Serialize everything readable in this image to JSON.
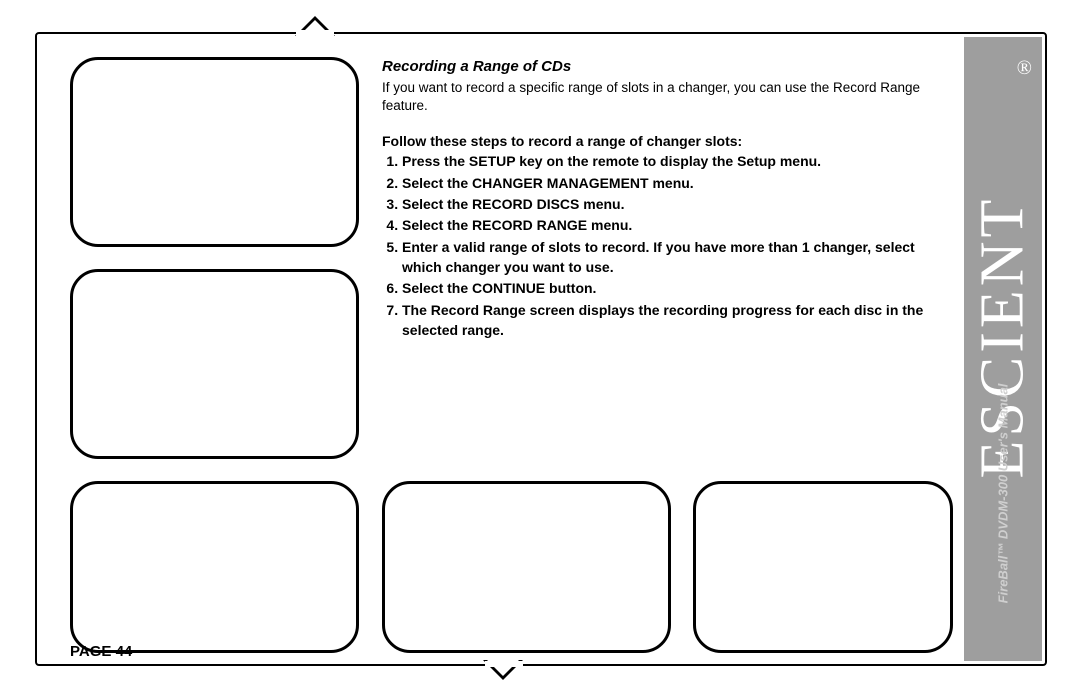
{
  "brand": {
    "logo_text": "ESCIENT",
    "registered_symbol": "®",
    "subtitle": "FireBall™ DVDM-300 User's Manual"
  },
  "page": {
    "label": "PAGE 44"
  },
  "section": {
    "title": "Recording a Range of CDs",
    "intro": "If you want to record a specific range of slots in a changer, you can use the Record Range feature.",
    "steps_title": "Follow these steps to record a range of changer slots:",
    "steps": [
      "Press the SETUP key on the remote to display the Setup menu.",
      "Select the CHANGER MANAGEMENT menu.",
      "Select the RECORD DISCS menu.",
      "Select the RECORD RANGE menu.",
      "Enter a valid range of slots to record. If you have more than 1 changer, select which changer you want to use.",
      "Select the CONTINUE button.",
      "The Record Range screen displays the recording progress for each disc in the selected range."
    ]
  },
  "layout": {
    "placeholder_border_radius": 28,
    "placeholder_border_color": "#000000",
    "brand_bar_bg": "#9e9e9e",
    "brand_text_color": "#ffffff"
  }
}
